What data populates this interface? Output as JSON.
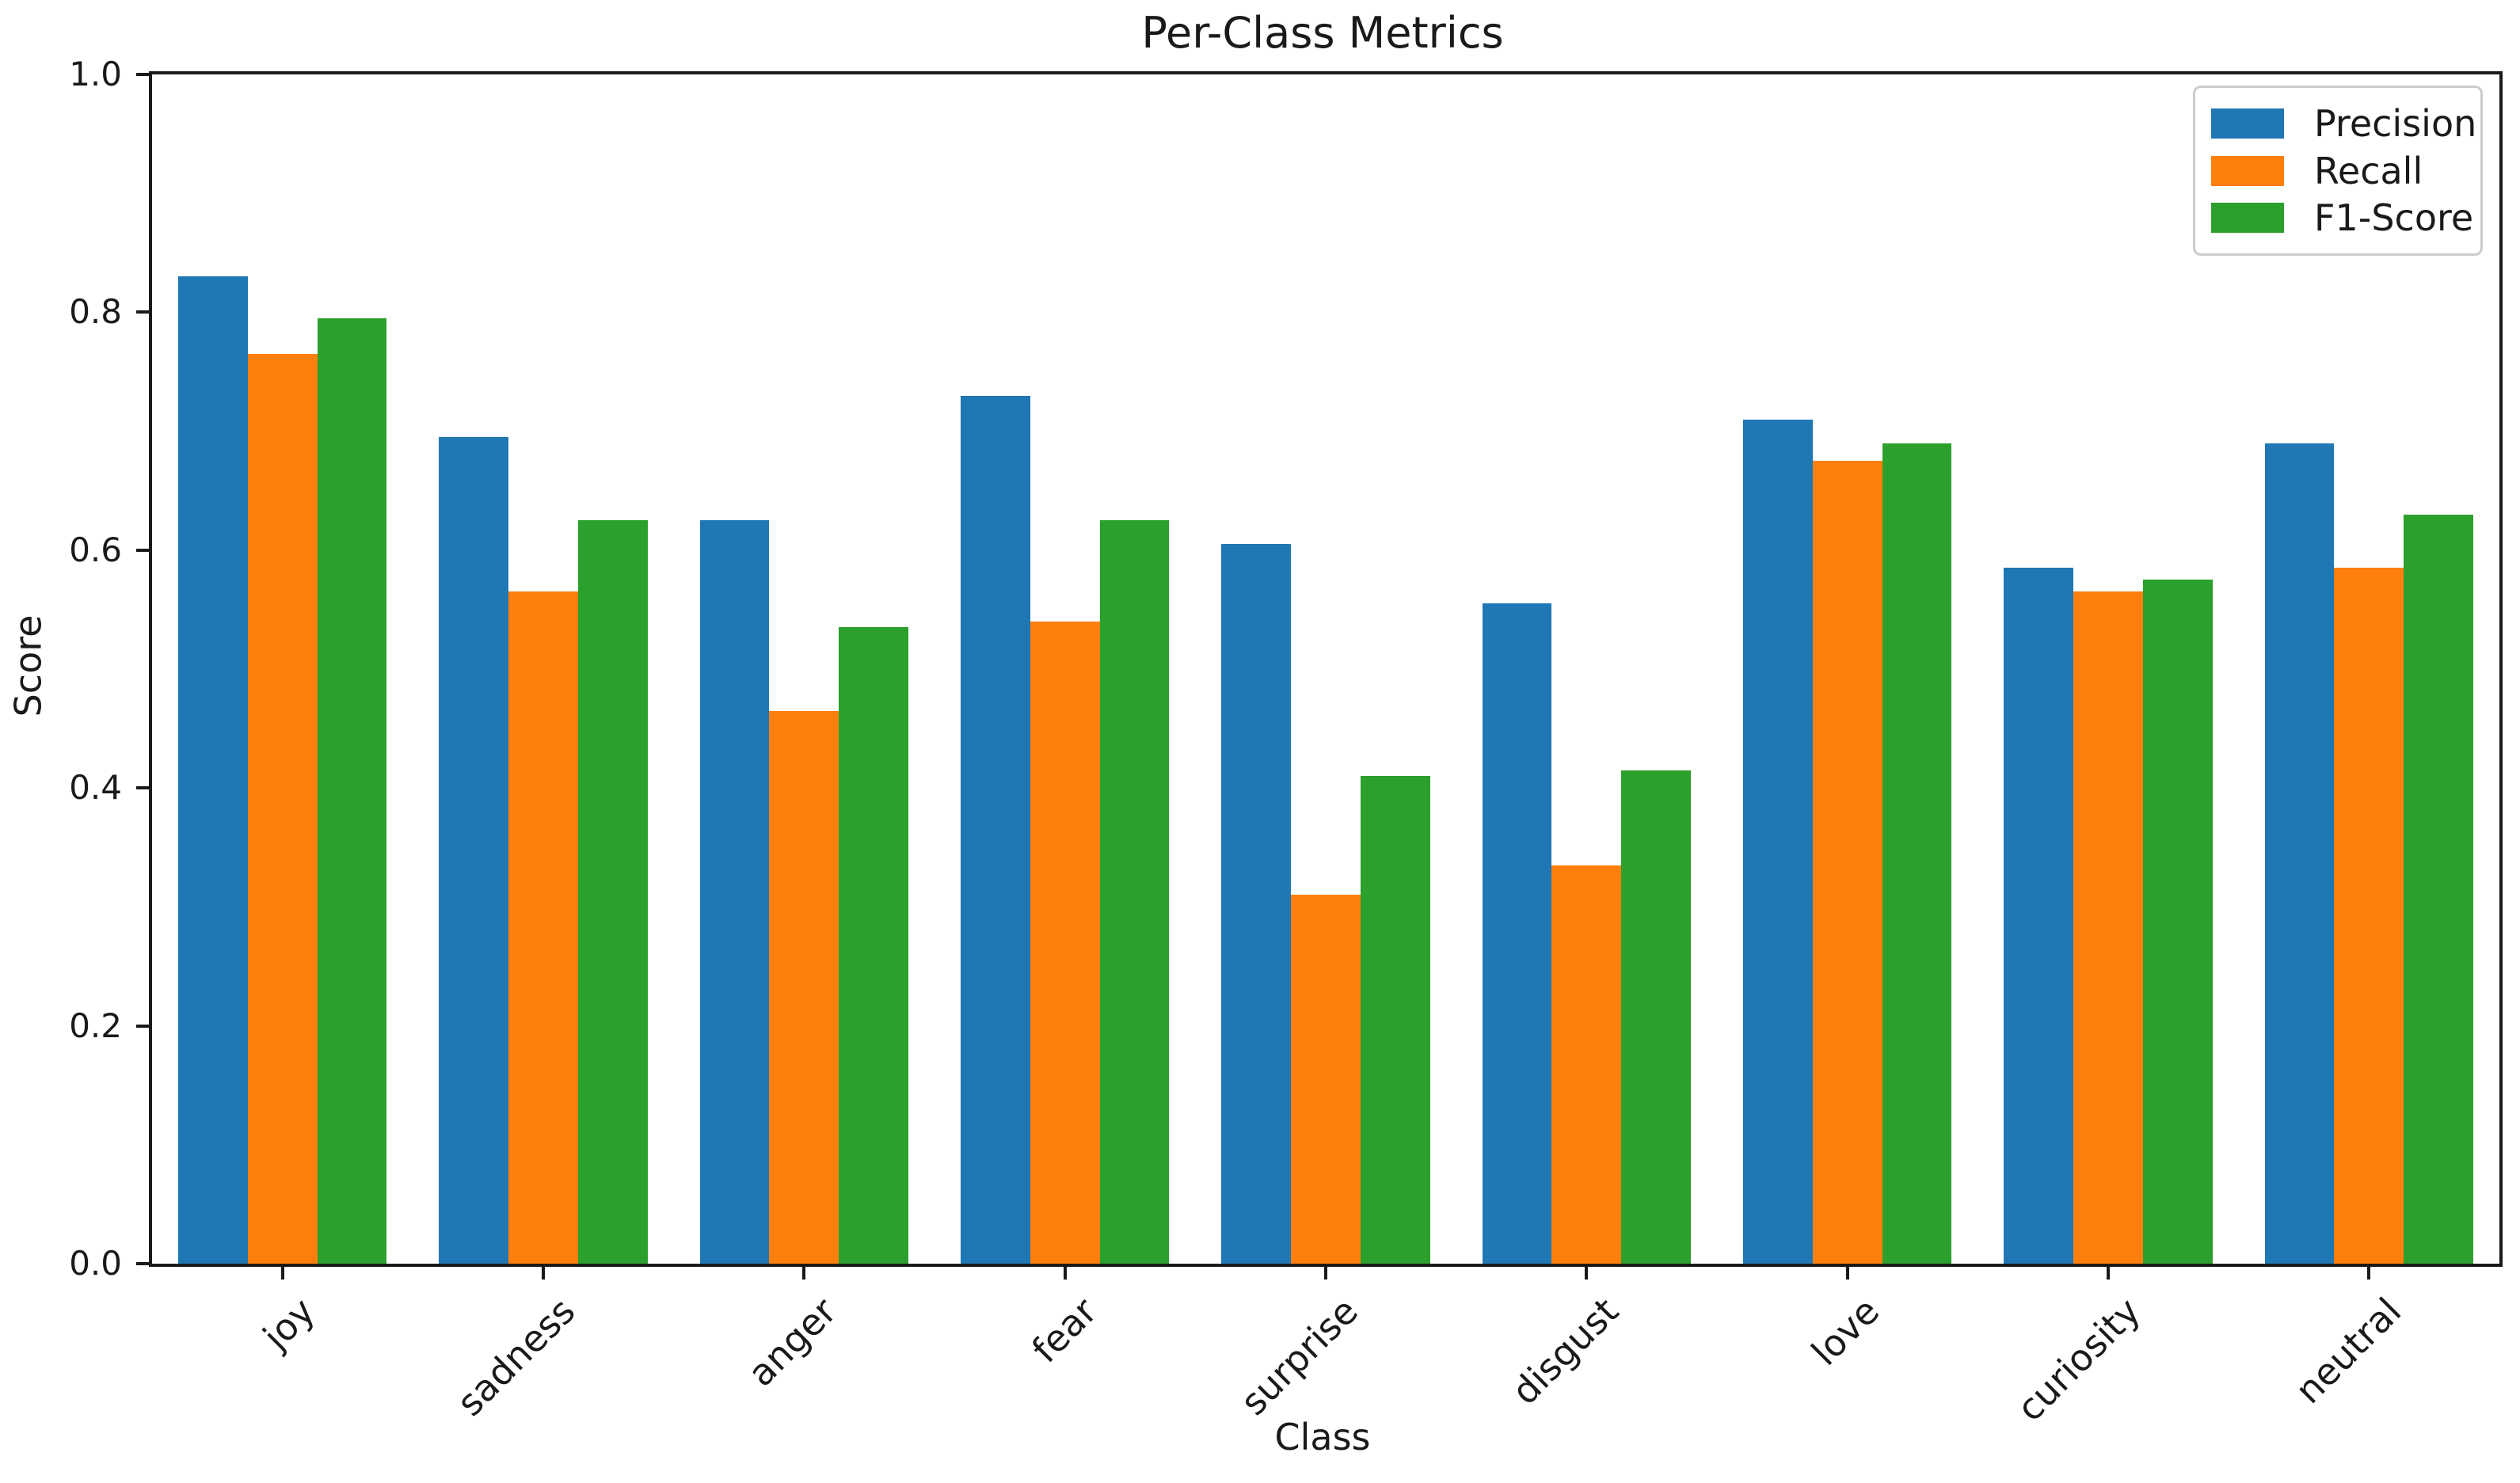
{
  "chart_data": {
    "type": "bar",
    "title": "Per-Class Metrics",
    "xlabel": "Class",
    "ylabel": "Score",
    "ylim": [
      0.0,
      1.0
    ],
    "yticks": [
      0.0,
      0.2,
      0.4,
      0.6,
      0.8,
      1.0
    ],
    "grid": false,
    "bar_group_width_fraction": 0.8,
    "categories": [
      "joy",
      "sadness",
      "anger",
      "fear",
      "surprise",
      "disgust",
      "love",
      "curiosity",
      "neutral"
    ],
    "series": [
      {
        "name": "Precision",
        "color": "#1f77b4",
        "values": [
          0.83,
          0.695,
          0.625,
          0.73,
          0.605,
          0.555,
          0.71,
          0.585,
          0.69
        ]
      },
      {
        "name": "Recall",
        "color": "#ff7f0e",
        "values": [
          0.765,
          0.565,
          0.465,
          0.54,
          0.31,
          0.335,
          0.675,
          0.565,
          0.585
        ]
      },
      {
        "name": "F1-Score",
        "color": "#2ca02c",
        "values": [
          0.795,
          0.625,
          0.535,
          0.625,
          0.41,
          0.415,
          0.69,
          0.575,
          0.63
        ]
      }
    ],
    "legend": {
      "position": "upper right",
      "entries": [
        "Precision",
        "Recall",
        "F1-Score"
      ]
    }
  }
}
